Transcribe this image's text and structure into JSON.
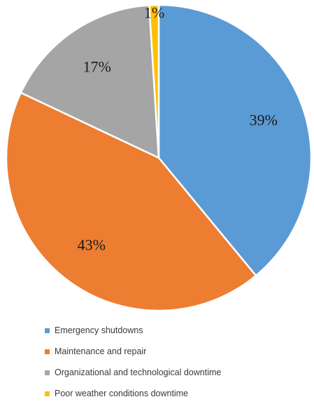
{
  "chart_data": {
    "type": "pie",
    "categories": [
      "Emergency shutdowns",
      "Maintenance and repair",
      "Organizational and technological downtime",
      "Poor weather conditions downtime"
    ],
    "values": [
      39,
      43,
      17,
      1
    ],
    "value_labels": [
      "39%",
      "43%",
      "17%",
      "1%"
    ],
    "colors": [
      "#5B9BD5",
      "#ED7D31",
      "#A5A5A5",
      "#FFC000"
    ],
    "start_angle_deg": 0,
    "direction": "clockwise",
    "legend_position": "bottom",
    "title": ""
  }
}
